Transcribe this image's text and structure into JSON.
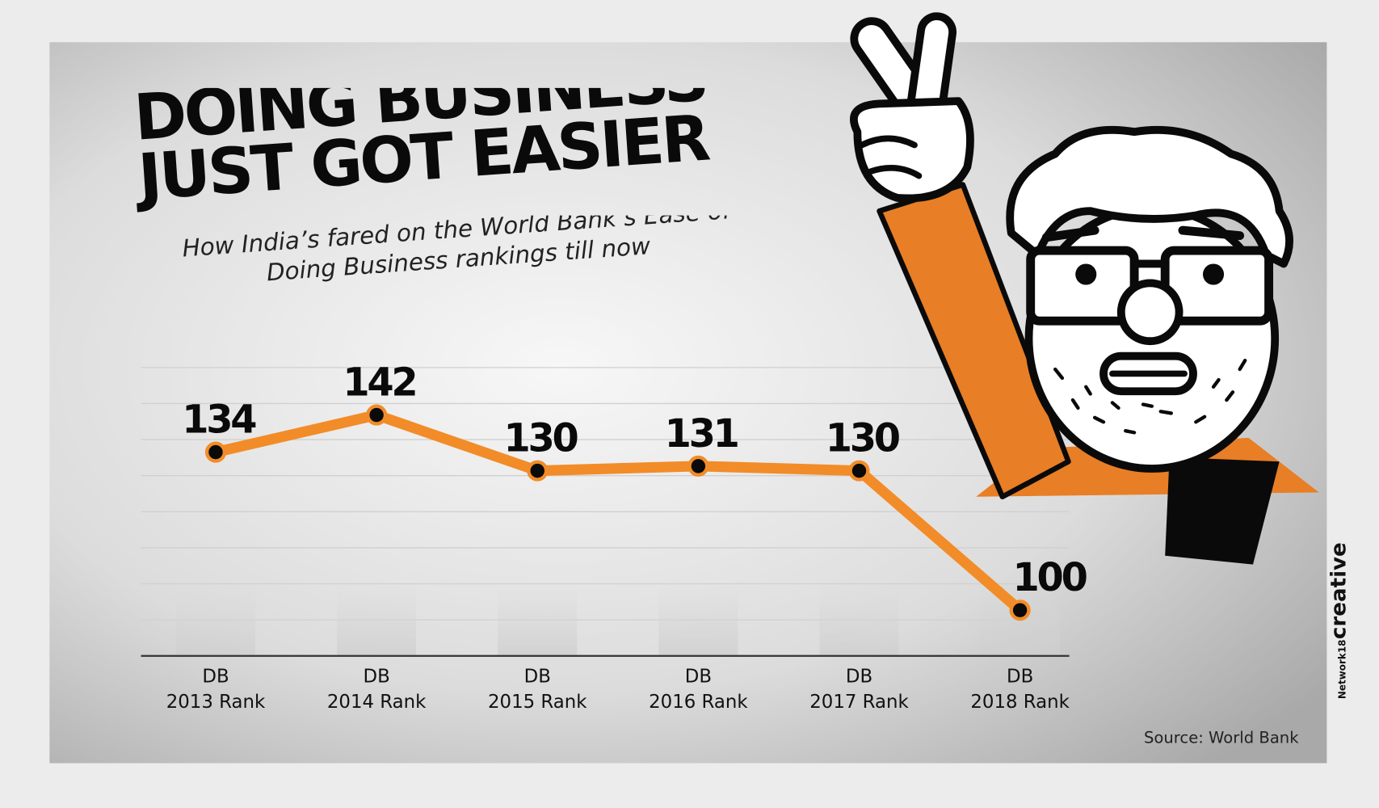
{
  "chart_data": {
    "type": "line",
    "title": "DOING BUSINESS\nJUST GOT EASIER",
    "subtitle": "How India’s fared on the World Bank’s Ease of\nDoing Business rankings till now",
    "categories": [
      "DB\n2013 Rank",
      "DB\n2014 Rank",
      "DB\n2015 Rank",
      "DB\n2016 Rank",
      "DB\n2017 Rank",
      "DB\n2018 Rank"
    ],
    "values": [
      134,
      142,
      130,
      131,
      130,
      100
    ],
    "color": "#f28c28",
    "source": "Source: World Bank",
    "credit": {
      "network": "Network18",
      "label": "creative"
    }
  }
}
